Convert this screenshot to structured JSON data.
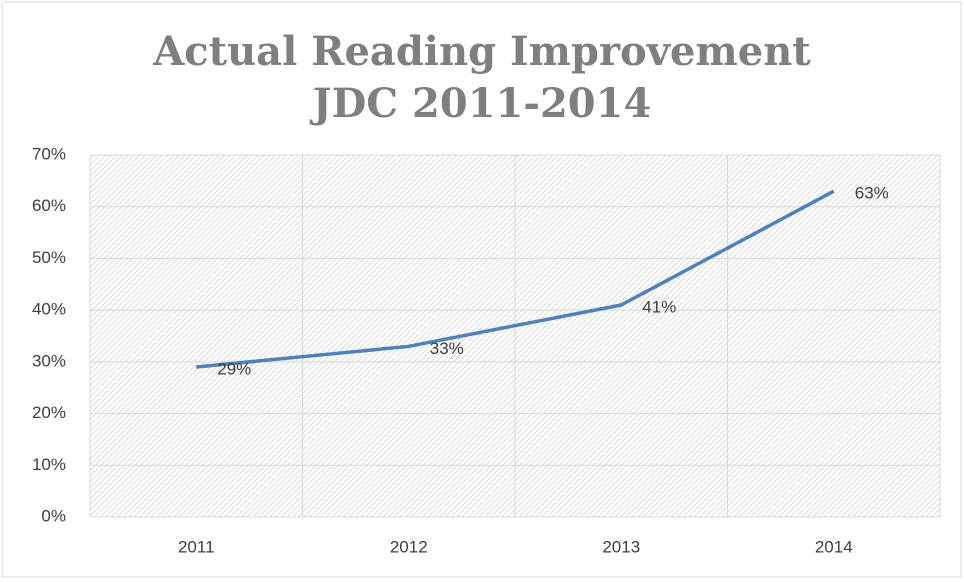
{
  "chart_data": {
    "type": "line",
    "title": "Actual Reading Improvement JDC 2011-2014",
    "categories": [
      "2011",
      "2012",
      "2013",
      "2014"
    ],
    "series": [
      {
        "name": "Actual Reading Improvement",
        "color": "#4f81bd",
        "values": [
          29,
          33,
          41,
          63
        ],
        "value_labels": [
          "29%",
          "33%",
          "41%",
          "63%"
        ]
      }
    ],
    "ylim": [
      0,
      70
    ],
    "yticks": [
      {
        "value": 0,
        "label": "0%"
      },
      {
        "value": 10,
        "label": "10%"
      },
      {
        "value": 20,
        "label": "20%"
      },
      {
        "value": 30,
        "label": "30%"
      },
      {
        "value": 40,
        "label": "40%"
      },
      {
        "value": 50,
        "label": "50%"
      },
      {
        "value": 60,
        "label": "60%"
      },
      {
        "value": 70,
        "label": "70%"
      }
    ],
    "grid": true
  }
}
